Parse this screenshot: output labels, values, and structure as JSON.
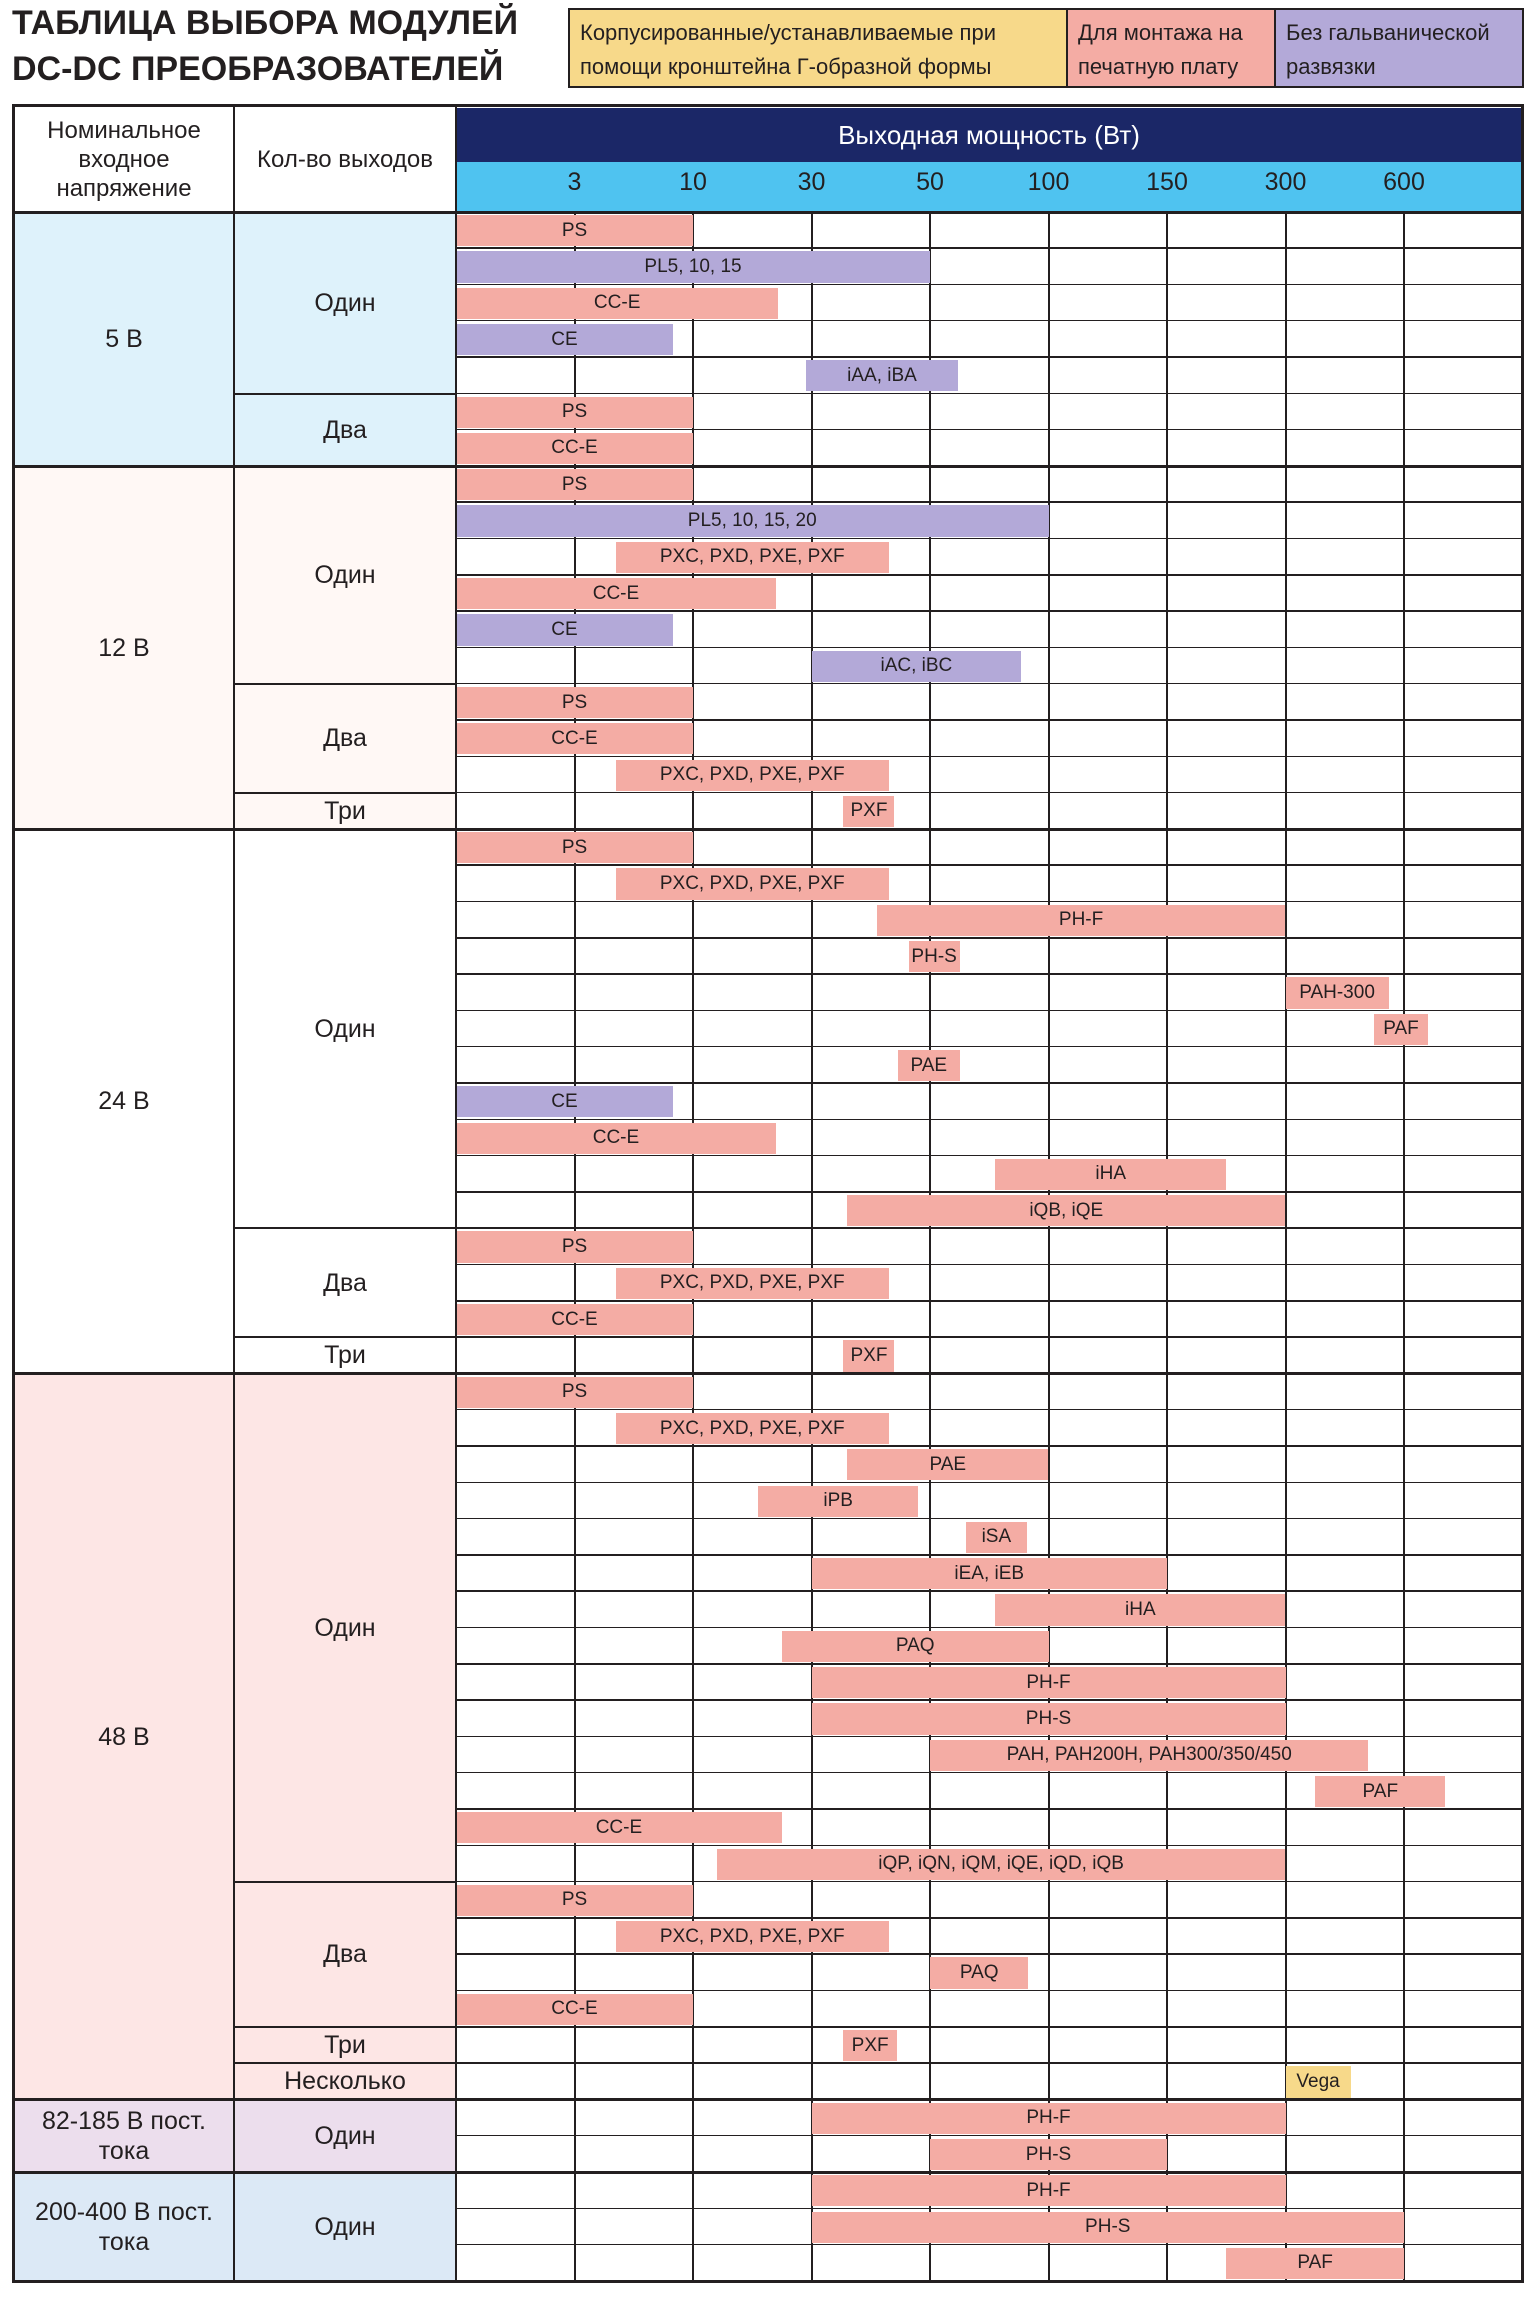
{
  "title": {
    "line1": "ТАБЛИЦА ВЫБОРА МОДУЛЕЙ",
    "line2": "DC-DC ПРЕОБРАЗОВАТЕЛЕЙ"
  },
  "legend": [
    {
      "label": "Корпусированные/устанавливаемые при помощи кронштейна Г-образной формы",
      "color": "#f7d98a"
    },
    {
      "label": "Для монтажа на печатную плату",
      "color": "#f4aca4"
    },
    {
      "label": "Без гальванической развязки",
      "color": "#b3a9d8"
    }
  ],
  "headers": {
    "voltage": "Номинальное входное напряжение",
    "outputs": "Кол-во выходов",
    "power": "Выходная мощность (Вт)"
  },
  "colors": {
    "axis_band": "#1b2767",
    "tick_band": "#4fc3f0",
    "pcb": "#f4aca4",
    "nonisolated": "#b3a9d8",
    "chassis": "#f7d98a"
  },
  "chart_data": {
    "type": "bar",
    "orientation": "horizontal",
    "x_ticks": [
      "3",
      "10",
      "30",
      "50",
      "100",
      "150",
      "300",
      "600"
    ],
    "xlabel": "Выходная мощность (Вт)",
    "groups": [
      {
        "voltage": "5 В",
        "bg": "#def2fb",
        "outputs": [
          {
            "label": "Один",
            "bars": [
              {
                "name": "PS",
                "type": "pcb",
                "from": 0,
                "to": 2
              },
              {
                "name": "PL5, 10, 15",
                "type": "nonisolated",
                "from": 0,
                "to": 4
              },
              {
                "name": "CC-E",
                "type": "pcb",
                "from": 0,
                "to": 2.72
              },
              {
                "name": "CE",
                "type": "nonisolated",
                "from": 0,
                "to": 1.83
              },
              {
                "name": "iAA, iBA",
                "type": "nonisolated",
                "from": 2.95,
                "to": 4.24
              }
            ]
          },
          {
            "label": "Два",
            "bars": [
              {
                "name": "PS",
                "type": "pcb",
                "from": 0,
                "to": 2
              },
              {
                "name": "CC-E",
                "type": "pcb",
                "from": 0,
                "to": 2
              }
            ]
          }
        ]
      },
      {
        "voltage": "12 В",
        "bg": "#fff8f5",
        "outputs": [
          {
            "label": "Один",
            "bars": [
              {
                "name": "PS",
                "type": "pcb",
                "from": 0,
                "to": 2
              },
              {
                "name": "PL5, 10, 15, 20",
                "type": "nonisolated",
                "from": 0,
                "to": 5
              },
              {
                "name": "PXC, PXD, PXE, PXF",
                "type": "pcb",
                "from": 1.35,
                "to": 3.65
              },
              {
                "name": "CC-E",
                "type": "pcb",
                "from": 0,
                "to": 2.7
              },
              {
                "name": "CE",
                "type": "nonisolated",
                "from": 0,
                "to": 1.83
              },
              {
                "name": "iAC, iBC",
                "type": "nonisolated",
                "from": 3,
                "to": 4.77
              }
            ]
          },
          {
            "label": "Два",
            "bars": [
              {
                "name": "PS",
                "type": "pcb",
                "from": 0,
                "to": 2
              },
              {
                "name": "CC-E",
                "type": "pcb",
                "from": 0,
                "to": 2
              },
              {
                "name": "PXC, PXD, PXE, PXF",
                "type": "pcb",
                "from": 1.35,
                "to": 3.65
              }
            ]
          },
          {
            "label": "Три",
            "bars": [
              {
                "name": "PXF",
                "type": "pcb",
                "from": 3.27,
                "to": 3.7
              }
            ]
          }
        ]
      },
      {
        "voltage": "24 В",
        "bg": "#ffffff",
        "outputs": [
          {
            "label": "Один",
            "bars": [
              {
                "name": "PS",
                "type": "pcb",
                "from": 0,
                "to": 2
              },
              {
                "name": "PXC, PXD, PXE, PXF",
                "type": "pcb",
                "from": 1.35,
                "to": 3.65
              },
              {
                "name": "PH-F",
                "type": "pcb",
                "from": 3.55,
                "to": 7
              },
              {
                "name": "PH-S",
                "type": "pcb",
                "from": 3.82,
                "to": 4.25
              },
              {
                "name": "PAH-300",
                "type": "pcb",
                "from": 7,
                "to": 7.87
              },
              {
                "name": "PAF",
                "type": "pcb",
                "from": 7.75,
                "to": 8.2
              },
              {
                "name": "PAE",
                "type": "pcb",
                "from": 3.73,
                "to": 4.25
              },
              {
                "name": "CE",
                "type": "nonisolated",
                "from": 0,
                "to": 1.83
              },
              {
                "name": "CC-E",
                "type": "pcb",
                "from": 0,
                "to": 2.7
              },
              {
                "name": "iHA",
                "type": "pcb",
                "from": 4.55,
                "to": 6.5
              },
              {
                "name": "iQB, iQE",
                "type": "pcb",
                "from": 3.3,
                "to": 7
              }
            ]
          },
          {
            "label": "Два",
            "bars": [
              {
                "name": "PS",
                "type": "pcb",
                "from": 0,
                "to": 2
              },
              {
                "name": "PXC, PXD, PXE, PXF",
                "type": "pcb",
                "from": 1.35,
                "to": 3.65
              },
              {
                "name": "CC-E",
                "type": "pcb",
                "from": 0,
                "to": 2
              }
            ]
          },
          {
            "label": "Три",
            "bars": [
              {
                "name": "PXF",
                "type": "pcb",
                "from": 3.27,
                "to": 3.7
              }
            ]
          }
        ]
      },
      {
        "voltage": "48 В",
        "bg": "#fde6e5",
        "outputs": [
          {
            "label": "Один",
            "bars": [
              {
                "name": "PS",
                "type": "pcb",
                "from": 0,
                "to": 2
              },
              {
                "name": "PXC, PXD, PXE, PXF",
                "type": "pcb",
                "from": 1.35,
                "to": 3.65
              },
              {
                "name": "PAE",
                "type": "pcb",
                "from": 3.3,
                "to": 5
              },
              {
                "name": "iPB",
                "type": "pcb",
                "from": 2.55,
                "to": 3.9
              },
              {
                "name": "iSA",
                "type": "pcb",
                "from": 4.3,
                "to": 4.82
              },
              {
                "name": "iEA, iEB",
                "type": "pcb",
                "from": 3,
                "to": 6
              },
              {
                "name": "iHA",
                "type": "pcb",
                "from": 4.55,
                "to": 7
              },
              {
                "name": "PAQ",
                "type": "pcb",
                "from": 2.75,
                "to": 5
              },
              {
                "name": "PH-F",
                "type": "pcb",
                "from": 3,
                "to": 7
              },
              {
                "name": "PH-S",
                "type": "pcb",
                "from": 3,
                "to": 7
              },
              {
                "name": "PAH, PAH200H, PAH300/350/450",
                "type": "pcb",
                "from": 4,
                "to": 7.7
              },
              {
                "name": "PAF",
                "type": "pcb",
                "from": 7.25,
                "to": 8.35
              },
              {
                "name": "CC-E",
                "type": "pcb",
                "from": 0,
                "to": 2.75
              },
              {
                "name": "iQP, iQN, iQM, iQE, iQD, iQB",
                "type": "pcb",
                "from": 2.2,
                "to": 7
              }
            ]
          },
          {
            "label": "Два",
            "bars": [
              {
                "name": "PS",
                "type": "pcb",
                "from": 0,
                "to": 2
              },
              {
                "name": "PXC, PXD, PXE, PXF",
                "type": "pcb",
                "from": 1.35,
                "to": 3.65
              },
              {
                "name": "PAQ",
                "type": "pcb",
                "from": 4,
                "to": 4.83
              },
              {
                "name": "CC-E",
                "type": "pcb",
                "from": 0,
                "to": 2
              }
            ]
          },
          {
            "label": "Три",
            "bars": [
              {
                "name": "PXF",
                "type": "pcb",
                "from": 3.27,
                "to": 3.72
              }
            ]
          },
          {
            "label": "Несколько",
            "bars": [
              {
                "name": "Vega",
                "type": "chassis",
                "from": 7,
                "to": 7.55
              }
            ]
          }
        ]
      },
      {
        "voltage": "82-185 В пост. тока",
        "bg": "#ecdeed",
        "outputs": [
          {
            "label": "Один",
            "bars": [
              {
                "name": "PH-F",
                "type": "pcb",
                "from": 3,
                "to": 7
              },
              {
                "name": "PH-S",
                "type": "pcb",
                "from": 4,
                "to": 6
              }
            ]
          }
        ]
      },
      {
        "voltage": "200-400 В пост. тока",
        "bg": "#dce9f6",
        "outputs": [
          {
            "label": "Один",
            "bars": [
              {
                "name": "PH-F",
                "type": "pcb",
                "from": 3,
                "to": 7
              },
              {
                "name": "PH-S",
                "type": "pcb",
                "from": 3,
                "to": 8
              },
              {
                "name": "PAF",
                "type": "pcb",
                "from": 6.5,
                "to": 8
              }
            ]
          }
        ]
      }
    ]
  }
}
